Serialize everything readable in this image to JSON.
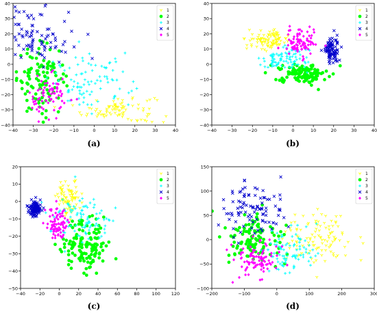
{
  "figure": {
    "panel_labels": [
      "(a)",
      "(b)",
      "(c)",
      "(d)"
    ]
  },
  "chart_data": [
    {
      "type": "scatter",
      "panel": "(a)",
      "xlim": [
        -40,
        40
      ],
      "ylim": [
        -40,
        40
      ],
      "xticks": [
        -40,
        -30,
        -20,
        -10,
        0,
        10,
        20,
        30,
        40
      ],
      "yticks": [
        -40,
        -30,
        -20,
        -10,
        0,
        10,
        20,
        30,
        40
      ],
      "legend_position": "top-right",
      "series": [
        {
          "name": "1",
          "color": "#ffff00",
          "marker": "tri-down",
          "center": [
            12,
            -30
          ],
          "spread": [
            9,
            5
          ],
          "count": 90
        },
        {
          "name": "2",
          "color": "#00ff00",
          "marker": "circle",
          "center": [
            -26,
            -10
          ],
          "spread": [
            6,
            11
          ],
          "count": 110
        },
        {
          "name": "3",
          "color": "#00ffff",
          "marker": "plus",
          "center": [
            -2,
            -12
          ],
          "spread": [
            10,
            9
          ],
          "count": 90
        },
        {
          "name": "4",
          "color": "#0000cc",
          "marker": "x",
          "center": [
            -28,
            20
          ],
          "spread": [
            9,
            9
          ],
          "count": 90
        },
        {
          "name": "5",
          "color": "#ff00ff",
          "marker": "diamond",
          "center": [
            -22,
            -22
          ],
          "spread": [
            5,
            7
          ],
          "count": 70
        }
      ]
    },
    {
      "type": "scatter",
      "panel": "(b)",
      "xlim": [
        -40,
        40
      ],
      "ylim": [
        -40,
        40
      ],
      "xticks": [
        -40,
        -30,
        -20,
        -10,
        0,
        10,
        20,
        30,
        40
      ],
      "yticks": [
        -40,
        -30,
        -20,
        -10,
        0,
        10,
        20,
        30,
        40
      ],
      "legend_position": "top-right",
      "series": [
        {
          "name": "1",
          "color": "#ffff00",
          "marker": "tri-down",
          "center": [
            -12,
            16
          ],
          "spread": [
            5,
            3
          ],
          "count": 100
        },
        {
          "name": "2",
          "color": "#00ff00",
          "marker": "circle",
          "center": [
            5,
            -6
          ],
          "spread": [
            6,
            3
          ],
          "count": 130
        },
        {
          "name": "3",
          "color": "#00ffff",
          "marker": "plus",
          "center": [
            -5,
            3
          ],
          "spread": [
            6,
            4
          ],
          "count": 90
        },
        {
          "name": "4",
          "color": "#0000cc",
          "marker": "x",
          "center": [
            19,
            9
          ],
          "spread": [
            2,
            4
          ],
          "count": 90
        },
        {
          "name": "5",
          "color": "#ff00ff",
          "marker": "diamond",
          "center": [
            4,
            14
          ],
          "spread": [
            4,
            5
          ],
          "count": 90
        }
      ]
    },
    {
      "type": "scatter",
      "panel": "(c)",
      "xlim": [
        -40,
        120
      ],
      "ylim": [
        -50,
        20
      ],
      "xticks": [
        -40,
        -20,
        0,
        20,
        40,
        60,
        80,
        100,
        120
      ],
      "yticks": [
        -50,
        -40,
        -30,
        -20,
        -10,
        0,
        10,
        20
      ],
      "legend_position": "top-right",
      "series": [
        {
          "name": "1",
          "color": "#ffff00",
          "marker": "tri-down",
          "center": [
            10,
            2
          ],
          "spread": [
            6,
            5
          ],
          "count": 90
        },
        {
          "name": "2",
          "color": "#00ff00",
          "marker": "circle",
          "center": [
            28,
            -25
          ],
          "spread": [
            12,
            8
          ],
          "count": 130
        },
        {
          "name": "3",
          "color": "#00ffff",
          "marker": "plus",
          "center": [
            25,
            -10
          ],
          "spread": [
            16,
            7
          ],
          "count": 90
        },
        {
          "name": "4",
          "color": "#0000cc",
          "marker": "x",
          "center": [
            -25,
            -4
          ],
          "spread": [
            3,
            2
          ],
          "count": 120
        },
        {
          "name": "5",
          "color": "#ff00ff",
          "marker": "diamond",
          "center": [
            -2,
            -13
          ],
          "spread": [
            5,
            4
          ],
          "count": 80
        }
      ]
    },
    {
      "type": "scatter",
      "panel": "(d)",
      "xlim": [
        -200,
        300
      ],
      "ylim": [
        -100,
        150
      ],
      "xticks": [
        -200,
        -100,
        0,
        100,
        200,
        300
      ],
      "yticks": [
        -100,
        -50,
        0,
        50,
        100,
        150
      ],
      "legend_position": "top-right",
      "series": [
        {
          "name": "1",
          "color": "#ffff00",
          "marker": "tri-down",
          "center": [
            130,
            0
          ],
          "spread": [
            55,
            30
          ],
          "count": 110
        },
        {
          "name": "2",
          "color": "#00ff00",
          "marker": "circle",
          "center": [
            -70,
            5
          ],
          "spread": [
            45,
            25
          ],
          "count": 110
        },
        {
          "name": "3",
          "color": "#00ffff",
          "marker": "plus",
          "center": [
            40,
            -20
          ],
          "spread": [
            45,
            25
          ],
          "count": 90
        },
        {
          "name": "4",
          "color": "#0000cc",
          "marker": "x",
          "center": [
            -80,
            60
          ],
          "spread": [
            45,
            30
          ],
          "count": 100
        },
        {
          "name": "5",
          "color": "#ff00ff",
          "marker": "diamond",
          "center": [
            -60,
            -40
          ],
          "spread": [
            40,
            20
          ],
          "count": 90
        }
      ]
    }
  ]
}
